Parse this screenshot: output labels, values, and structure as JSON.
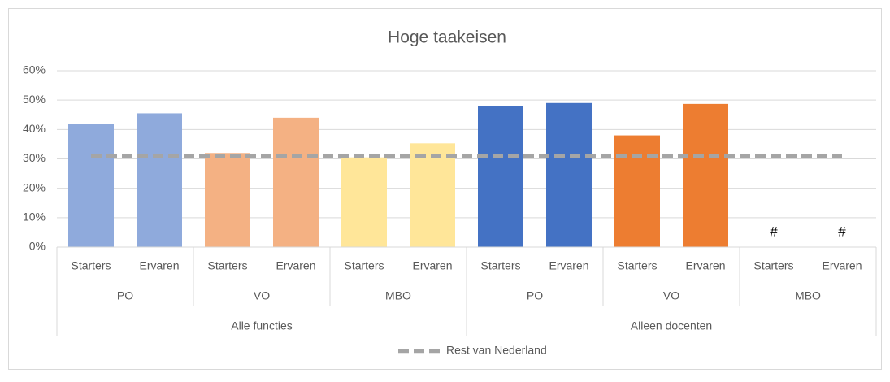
{
  "chart_data": {
    "type": "bar",
    "title": "Hoge taakeisen",
    "groups": [
      {
        "name": "Alle functies",
        "groups": [
          {
            "name": "PO",
            "categories": [
              "Starters",
              "Ervaren"
            ]
          },
          {
            "name": "VO",
            "categories": [
              "Starters",
              "Ervaren"
            ]
          },
          {
            "name": "MBO",
            "categories": [
              "Starters",
              "Ervaren"
            ]
          }
        ]
      },
      {
        "name": "Alleen docenten",
        "groups": [
          {
            "name": "PO",
            "categories": [
              "Starters",
              "Ervaren"
            ]
          },
          {
            "name": "VO",
            "categories": [
              "Starters",
              "Ervaren"
            ]
          },
          {
            "name": "MBO",
            "categories": [
              "Starters",
              "Ervaren"
            ]
          }
        ]
      }
    ],
    "series": [
      {
        "type": "bar",
        "colors": [
          "#8faadc",
          "#8faadc",
          "#f4b183",
          "#f4b183",
          "#ffe699",
          "#ffe699",
          "#4472c4",
          "#4472c4",
          "#ed7d31",
          "#ed7d31",
          "#a5a5a5",
          "#a5a5a5"
        ],
        "values": [
          42,
          45.5,
          32,
          44,
          30.5,
          35.3,
          48,
          49,
          38,
          48.7,
          null,
          null
        ],
        "value_labels": [
          null,
          null,
          null,
          null,
          null,
          null,
          null,
          null,
          null,
          null,
          "#",
          "#"
        ]
      },
      {
        "type": "line",
        "name": "Rest van Nederland",
        "color": "#a5a5a5",
        "dashed": true,
        "values": [
          31,
          31,
          31,
          31,
          31,
          31,
          31,
          31,
          31,
          31,
          31,
          31
        ]
      }
    ],
    "ylim": [
      0,
      60
    ],
    "yticks": [
      {
        "value": 0,
        "label": "0%"
      },
      {
        "value": 10,
        "label": "10%"
      },
      {
        "value": 20,
        "label": "20%"
      },
      {
        "value": 30,
        "label": "30%"
      },
      {
        "value": 40,
        "label": "40%"
      },
      {
        "value": 50,
        "label": "50%"
      },
      {
        "value": 60,
        "label": "60%"
      }
    ],
    "grid": true,
    "legend": "bottom"
  }
}
